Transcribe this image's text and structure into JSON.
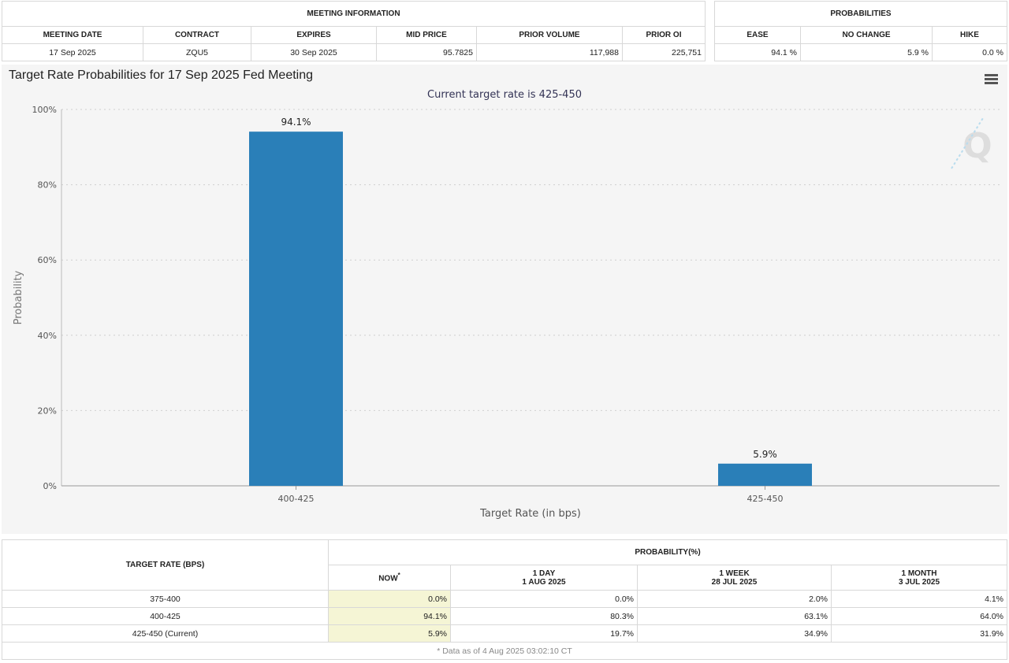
{
  "meeting_info": {
    "title": "MEETING INFORMATION",
    "headers": [
      "MEETING DATE",
      "CONTRACT",
      "EXPIRES",
      "MID PRICE",
      "PRIOR VOLUME",
      "PRIOR OI"
    ],
    "row": [
      "17 Sep 2025",
      "ZQU5",
      "30 Sep 2025",
      "95.7825",
      "117,988",
      "225,751"
    ]
  },
  "probabilities": {
    "title": "PROBABILITIES",
    "headers": [
      "EASE",
      "NO CHANGE",
      "HIKE"
    ],
    "row": [
      "94.1 %",
      "5.9 %",
      "0.0 %"
    ]
  },
  "chart_data": {
    "type": "bar",
    "title": "Target Rate Probabilities for 17 Sep 2025 Fed Meeting",
    "subtitle": "Current target rate is 425-450",
    "xlabel": "Target Rate (in bps)",
    "ylabel": "Probability",
    "categories": [
      "400-425",
      "425-450"
    ],
    "values": [
      94.1,
      5.9
    ],
    "data_labels": [
      "94.1%",
      "5.9%"
    ],
    "ylim": [
      0,
      100
    ],
    "yticks": [
      "0%",
      "20%",
      "40%",
      "60%",
      "80%",
      "100%"
    ],
    "grid": true,
    "bar_color": "#2a7fb8",
    "watermark": "Q"
  },
  "history": {
    "col_target": "TARGET RATE (BPS)",
    "col_prob": "PROBABILITY(%)",
    "periods": [
      {
        "label": "NOW",
        "date": ""
      },
      {
        "label": "1 DAY",
        "date": "1 AUG 2025"
      },
      {
        "label": "1 WEEK",
        "date": "28 JUL 2025"
      },
      {
        "label": "1 MONTH",
        "date": "3 JUL 2025"
      }
    ],
    "now_marker": "*",
    "rows": [
      {
        "rate": "375-400",
        "values": [
          "0.0%",
          "0.0%",
          "2.0%",
          "4.1%"
        ]
      },
      {
        "rate": "400-425",
        "values": [
          "94.1%",
          "80.3%",
          "63.1%",
          "64.0%"
        ]
      },
      {
        "rate": "425-450 (Current)",
        "values": [
          "5.9%",
          "19.7%",
          "34.9%",
          "31.9%"
        ]
      }
    ],
    "footnote": "* Data as of 4 Aug 2025 03:02:10 CT"
  }
}
